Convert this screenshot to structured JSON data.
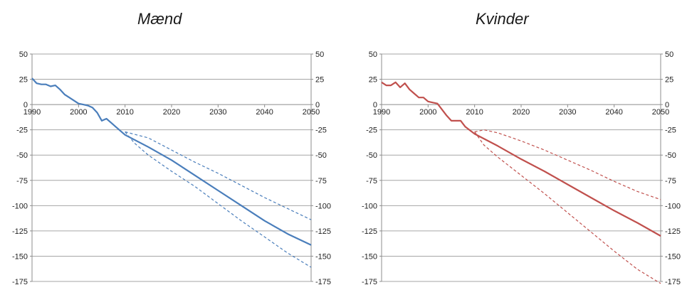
{
  "chart_data": [
    {
      "type": "line",
      "title": "Mænd",
      "xlim": [
        1990,
        2050
      ],
      "ylim": [
        -175,
        50
      ],
      "xticks": [
        1990,
        2000,
        2010,
        2020,
        2030,
        2040,
        2050
      ],
      "yticks": [
        50,
        25,
        0,
        -25,
        -50,
        -75,
        -100,
        -125,
        -150,
        -175
      ],
      "grid": "horizontal",
      "color": "#4a7ebb",
      "series": [
        {
          "style": "solid",
          "x": [
            1990,
            1991,
            1992,
            1993,
            1994,
            1995,
            1996,
            1997,
            1998,
            1999,
            2000,
            2001,
            2002,
            2003,
            2004,
            2005,
            2006,
            2007,
            2008,
            2010,
            2015,
            2020,
            2025,
            2030,
            2035,
            2040,
            2045,
            2050
          ],
          "values": [
            26,
            21,
            20,
            20,
            18,
            19,
            15,
            10,
            7,
            4,
            1,
            0,
            -1,
            -3,
            -8,
            -16,
            -14,
            -18,
            -22,
            -30,
            -42,
            -55,
            -70,
            -85,
            -100,
            -115,
            -128,
            -139
          ]
        },
        {
          "style": "dashed",
          "x": [
            2010,
            2015,
            2020,
            2025,
            2030,
            2035,
            2040,
            2045,
            2050
          ],
          "values": [
            -27,
            -33,
            -45,
            -57,
            -68,
            -80,
            -92,
            -103,
            -114
          ]
        },
        {
          "style": "dashed",
          "x": [
            2010,
            2012,
            2015,
            2020,
            2025,
            2030,
            2035,
            2040,
            2045,
            2050
          ],
          "values": [
            -27,
            -38,
            -50,
            -66,
            -81,
            -98,
            -115,
            -131,
            -147,
            -161
          ]
        }
      ]
    },
    {
      "type": "line",
      "title": "Kvinder",
      "xlim": [
        1990,
        2050
      ],
      "ylim": [
        -175,
        50
      ],
      "xticks": [
        1990,
        2000,
        2010,
        2020,
        2030,
        2040,
        2050
      ],
      "yticks": [
        50,
        25,
        0,
        -25,
        -50,
        -75,
        -100,
        -125,
        -150,
        -175
      ],
      "grid": "horizontal",
      "color": "#c0504d",
      "series": [
        {
          "style": "solid",
          "x": [
            1990,
            1991,
            1992,
            1993,
            1994,
            1995,
            1996,
            1997,
            1998,
            1999,
            2000,
            2001,
            2002,
            2003,
            2004,
            2005,
            2006,
            2007,
            2008,
            2010,
            2015,
            2020,
            2025,
            2030,
            2035,
            2040,
            2045,
            2050
          ],
          "values": [
            22,
            19,
            19,
            22,
            17,
            21,
            15,
            11,
            7,
            7,
            3,
            2,
            1,
            -5,
            -11,
            -16,
            -16,
            -16,
            -22,
            -29,
            -41,
            -54,
            -66,
            -79,
            -92,
            -105,
            -117,
            -130
          ]
        },
        {
          "style": "dashed",
          "x": [
            2010,
            2012,
            2015,
            2020,
            2025,
            2030,
            2035,
            2040,
            2045,
            2050
          ],
          "values": [
            -27,
            -25,
            -28,
            -36,
            -45,
            -55,
            -65,
            -76,
            -86,
            -94
          ]
        },
        {
          "style": "dashed",
          "x": [
            2010,
            2012,
            2015,
            2020,
            2025,
            2030,
            2035,
            2040,
            2045,
            2050
          ],
          "values": [
            -27,
            -40,
            -52,
            -70,
            -88,
            -107,
            -126,
            -145,
            -163,
            -177
          ]
        }
      ]
    }
  ]
}
